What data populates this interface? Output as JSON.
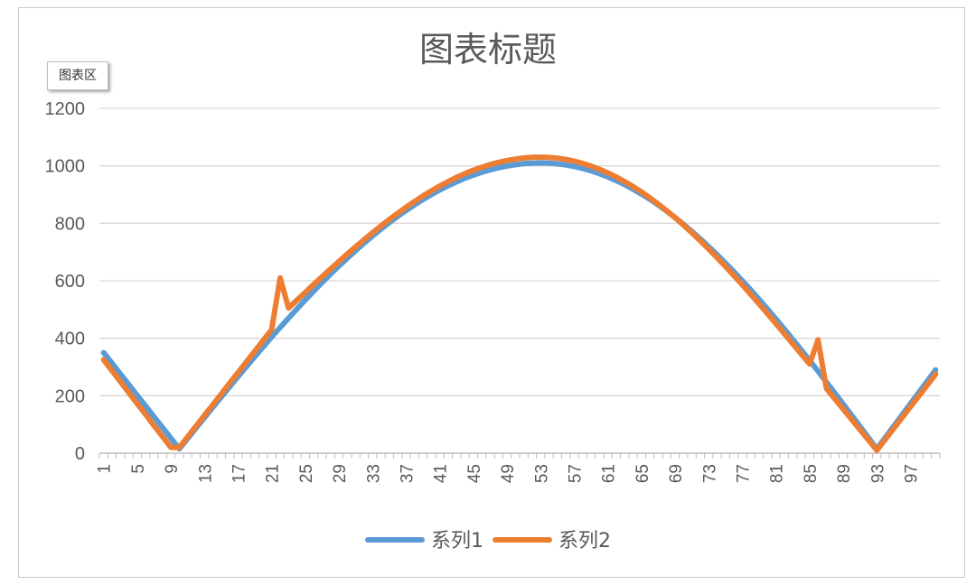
{
  "chart_data": {
    "type": "line",
    "title": "图表标题",
    "xlabel": "",
    "ylabel": "",
    "ylim": [
      0,
      1200
    ],
    "yticks": [
      0,
      200,
      400,
      600,
      800,
      1000,
      1200
    ],
    "xtick_labels": [
      "1",
      "5",
      "9",
      "13",
      "17",
      "21",
      "25",
      "29",
      "33",
      "37",
      "41",
      "45",
      "49",
      "53",
      "57",
      "61",
      "65",
      "69",
      "73",
      "77",
      "81",
      "85",
      "89",
      "93",
      "97"
    ],
    "x_count": 100,
    "grid": "horizontal",
    "legend_position": "bottom",
    "series": [
      {
        "name": "系列1",
        "color": "#5B9BD5",
        "x": [
          1,
          10,
          53,
          93,
          100
        ],
        "y": [
          350,
          15,
          1010,
          15,
          290
        ]
      },
      {
        "name": "系列2",
        "color": "#ED7D31",
        "x": [
          1,
          9,
          10,
          21,
          22,
          23,
          53,
          85,
          86,
          87,
          93,
          100
        ],
        "y": [
          325,
          20,
          20,
          430,
          610,
          505,
          1030,
          310,
          395,
          225,
          10,
          275
        ]
      }
    ]
  },
  "ui": {
    "area_badge": "图表区"
  },
  "colors": {
    "gridline": "#d9d9d9",
    "axis": "#bfbfbf",
    "text": "#595959"
  }
}
